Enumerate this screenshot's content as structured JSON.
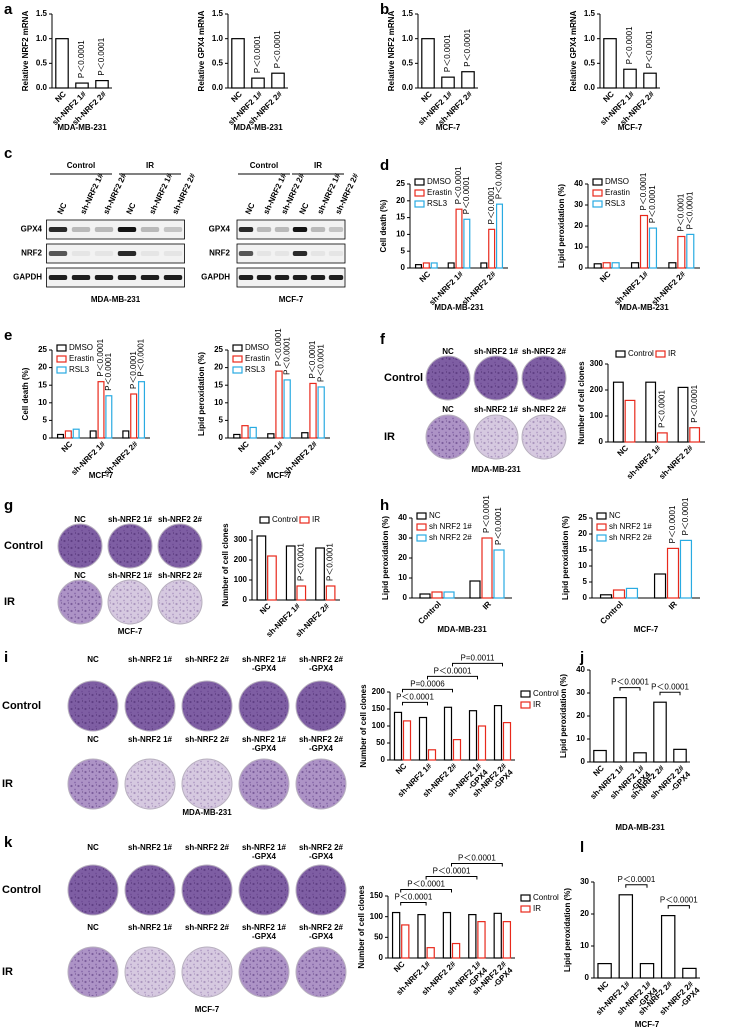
{
  "panel_letters": [
    "a",
    "b",
    "c",
    "d",
    "e",
    "f",
    "g",
    "h",
    "i",
    "j",
    "k",
    "l"
  ],
  "chart_data": [
    {
      "type": "bar",
      "ylabel": "Relative NRF2 mRNA",
      "categories": [
        "NC",
        "sh-NRF2 1#",
        "sh-NRF2 2#"
      ],
      "series": [
        {
          "color": "#000000",
          "values": [
            1.0,
            0.1,
            0.15
          ],
          "annotations": [
            null,
            "P＜0.0001",
            "P＜0.0001"
          ]
        }
      ],
      "ylim": [
        0,
        1.5
      ],
      "yticks": [
        {
          "value": 0,
          "label": "0.0"
        },
        {
          "value": 0.5,
          "label": "0.5"
        },
        {
          "value": 1,
          "label": "1.0"
        },
        {
          "value": 1.5,
          "label": "1.5"
        }
      ],
      "caption": "MDA-MB-231"
    },
    {
      "type": "bar",
      "ylabel": "Relative GPX4 mRNA",
      "categories": [
        "NC",
        "sh-NRF2 1#",
        "sh-NRF2 2#"
      ],
      "series": [
        {
          "color": "#000000",
          "values": [
            1.0,
            0.2,
            0.3
          ],
          "annotations": [
            null,
            "P＜0.0001",
            "P＜0.0001"
          ]
        }
      ],
      "ylim": [
        0,
        1.5
      ],
      "yticks": [
        {
          "value": 0,
          "label": "0.0"
        },
        {
          "value": 0.5,
          "label": "0.5"
        },
        {
          "value": 1,
          "label": "1.0"
        },
        {
          "value": 1.5,
          "label": "1.5"
        }
      ],
      "caption": "MDA-MB-231"
    },
    {
      "type": "bar",
      "ylabel": "Relative NRF2 mRNA",
      "categories": [
        "NC",
        "sh-NRF2 1#",
        "sh-NRF2 2#"
      ],
      "series": [
        {
          "color": "#000000",
          "values": [
            1.0,
            0.22,
            0.33
          ],
          "annotations": [
            null,
            "P＜0.0001",
            "P＜0.0001"
          ]
        }
      ],
      "ylim": [
        0,
        1.5
      ],
      "yticks": [
        {
          "value": 0,
          "label": "0.0"
        },
        {
          "value": 0.5,
          "label": "0.5"
        },
        {
          "value": 1,
          "label": "1.0"
        },
        {
          "value": 1.5,
          "label": "1.5"
        }
      ],
      "caption": "MCF-7"
    },
    {
      "type": "bar",
      "ylabel": "Relative GPX4 mRNA",
      "categories": [
        "NC",
        "sh-NRF2 1#",
        "sh-NRF2 2#"
      ],
      "series": [
        {
          "color": "#000000",
          "values": [
            1.0,
            0.38,
            0.3
          ],
          "annotations": [
            null,
            "P＜0.0001",
            "P＜0.0001"
          ]
        }
      ],
      "ylim": [
        0,
        1.5
      ],
      "yticks": [
        {
          "value": 0,
          "label": "0.0"
        },
        {
          "value": 0.5,
          "label": "0.5"
        },
        {
          "value": 1,
          "label": "1.0"
        },
        {
          "value": 1.5,
          "label": "1.5"
        }
      ],
      "caption": "MCF-7"
    },
    {
      "type": "bar",
      "ylabel": "Cell death (%)",
      "categories": [
        "NC",
        "sh-NRF2 1#",
        "sh-NRF2 2#"
      ],
      "series": [
        {
          "name": "DMSO",
          "color": "#000000",
          "values": [
            1,
            1.5,
            1.5
          ]
        },
        {
          "name": "Erastin",
          "color": "#e8291c",
          "values": [
            1.5,
            17.5,
            11.5
          ],
          "annotations": [
            null,
            "P＜0.0001",
            "P＜0.0001"
          ]
        },
        {
          "name": "RSL3",
          "color": "#29abe2",
          "values": [
            1.5,
            14.5,
            19
          ],
          "annotations": [
            null,
            "P＜0.0001",
            "P＜0.0001"
          ]
        }
      ],
      "ylim": [
        0,
        25
      ],
      "yticks": [
        0,
        5,
        10,
        15,
        20,
        25
      ],
      "legend": "upper left",
      "caption": "MDA-MB-231"
    },
    {
      "type": "bar",
      "ylabel": "Lipid peroxidation (%)",
      "categories": [
        "NC",
        "sh-NRF2 1#",
        "sh-NRF2 2#"
      ],
      "series": [
        {
          "name": "DMSO",
          "color": "#000000",
          "values": [
            2,
            2.5,
            2.5
          ]
        },
        {
          "name": "Erastin",
          "color": "#e8291c",
          "values": [
            2.5,
            25,
            15
          ],
          "annotations": [
            null,
            "P＜0.0001",
            "P＜0.0001"
          ]
        },
        {
          "name": "RSL3",
          "color": "#29abe2",
          "values": [
            2.5,
            19,
            16
          ],
          "annotations": [
            null,
            "P＜0.0001",
            "P＜0.0001"
          ]
        }
      ],
      "ylim": [
        0,
        40
      ],
      "yticks": [
        0,
        10,
        20,
        30,
        40
      ],
      "legend": "upper left",
      "caption": "MDA-MB-231"
    },
    {
      "type": "bar",
      "ylabel": "Cell death (%)",
      "categories": [
        "NC",
        "sh-NRF2 1#",
        "sh-NRF2 2#"
      ],
      "series": [
        {
          "name": "DMSO",
          "color": "#000000",
          "values": [
            1,
            2,
            2
          ]
        },
        {
          "name": "Erastin",
          "color": "#e8291c",
          "values": [
            2,
            16,
            12.5
          ],
          "annotations": [
            null,
            "P＜0.0001",
            "P＜0.0001"
          ]
        },
        {
          "name": "RSL3",
          "color": "#29abe2",
          "values": [
            2.5,
            12,
            16
          ],
          "annotations": [
            null,
            "P＜0.0001",
            "P＜0.0001"
          ]
        }
      ],
      "ylim": [
        0,
        25
      ],
      "yticks": [
        0,
        5,
        10,
        15,
        20,
        25
      ],
      "legend": "upper left",
      "caption": "MCF-7"
    },
    {
      "type": "bar",
      "ylabel": "Lipid peroxidation (%)",
      "categories": [
        "NC",
        "sh-NRF2 1#",
        "sh-NRF2 2#"
      ],
      "series": [
        {
          "name": "DMSO",
          "color": "#000000",
          "values": [
            1,
            1.2,
            1.5
          ]
        },
        {
          "name": "Erastin",
          "color": "#e8291c",
          "values": [
            3.5,
            19,
            15.5
          ],
          "annotations": [
            null,
            "P＜0.0001",
            "P＜0.0001"
          ]
        },
        {
          "name": "RSL3",
          "color": "#29abe2",
          "values": [
            3,
            16.5,
            14.5
          ],
          "annotations": [
            null,
            "P＜0.0001",
            "P＜0.0001"
          ]
        }
      ],
      "ylim": [
        0,
        25
      ],
      "yticks": [
        0,
        5,
        10,
        15,
        20,
        25
      ],
      "legend": "upper left",
      "caption": "MCF-7"
    },
    {
      "type": "bar",
      "ylabel": "Number of cell clones",
      "categories": [
        "NC",
        "sh-NRF2 1#",
        "sh-NRF2 2#"
      ],
      "series": [
        {
          "name": "Control",
          "color": "#000000",
          "values": [
            230,
            230,
            210
          ]
        },
        {
          "name": "IR",
          "color": "#e8291c",
          "values": [
            160,
            35,
            55
          ],
          "annotations": [
            null,
            "P＜0.0001",
            "P＜0.0001"
          ]
        }
      ],
      "ylim": [
        0,
        300
      ],
      "yticks": [
        0,
        100,
        200,
        300
      ],
      "legend": "top"
    },
    {
      "type": "bar",
      "ylabel": "Number of cell clones",
      "categories": [
        "NC",
        "sh-NRF2 1#",
        "sh-NRF2 2#"
      ],
      "series": [
        {
          "name": "Control",
          "color": "#000000",
          "values": [
            320,
            270,
            260
          ]
        },
        {
          "name": "IR",
          "color": "#e8291c",
          "values": [
            220,
            70,
            70
          ],
          "annotations": [
            null,
            "P＜0.0001",
            "P＜0.0001"
          ]
        }
      ],
      "ylim": [
        0,
        350
      ],
      "yticks": [
        0,
        100,
        200,
        300
      ],
      "legend": "top"
    },
    {
      "type": "bar",
      "ylabel": "Lipid peroxidation (%)",
      "categories": [
        "Control",
        "IR"
      ],
      "series": [
        {
          "name": "NC",
          "color": "#000000",
          "values": [
            2,
            8.5
          ]
        },
        {
          "name": "sh NRF2 1#",
          "color": "#e8291c",
          "values": [
            3,
            30
          ],
          "annotations": [
            null,
            "P＜0.0001"
          ]
        },
        {
          "name": "sh NRF2 2#",
          "color": "#29abe2",
          "values": [
            3,
            24
          ],
          "annotations": [
            null,
            "P＜0.0001"
          ]
        }
      ],
      "ylim": [
        0,
        40
      ],
      "yticks": [
        0,
        10,
        20,
        30,
        40
      ],
      "legend": "upper left",
      "caption": "MDA-MB-231"
    },
    {
      "type": "bar",
      "ylabel": "Lipid peroxidation (%)",
      "categories": [
        "Control",
        "IR"
      ],
      "series": [
        {
          "name": "NC",
          "color": "#000000",
          "values": [
            1,
            7.5
          ]
        },
        {
          "name": "sh NRF2 1#",
          "color": "#e8291c",
          "values": [
            2.5,
            15.5
          ],
          "annotations": [
            null,
            "P＜0.0001"
          ]
        },
        {
          "name": "sh NRF2 2#",
          "color": "#29abe2",
          "values": [
            3,
            18
          ],
          "annotations": [
            null,
            "P＜0.0001"
          ]
        }
      ],
      "ylim": [
        0,
        25
      ],
      "yticks": [
        0,
        5,
        10,
        15,
        20,
        25
      ],
      "legend": "upper left",
      "caption": "MCF-7"
    },
    {
      "type": "bar",
      "ylabel": "Number of cell clones",
      "categories": [
        "NC",
        "sh-NRF2 1#",
        "sh-NRF2 2#",
        [
          "sh-NRF2 1#",
          "-GPX4"
        ],
        [
          "sh-NRF2 2#",
          "-GPX4"
        ]
      ],
      "series": [
        {
          "name": "Control",
          "color": "#000000",
          "values": [
            140,
            125,
            155,
            145,
            160
          ]
        },
        {
          "name": "IR",
          "color": "#e8291c",
          "values": [
            115,
            30,
            60,
            100,
            110
          ]
        }
      ],
      "ylim": [
        0,
        200
      ],
      "yticks": [
        0,
        50,
        100,
        150,
        200
      ],
      "legend": "right",
      "brackets": [
        {
          "between": [
            0,
            1
          ],
          "label": "P＜0.0001"
        },
        {
          "between": [
            0,
            2
          ],
          "label": "P=0.0006"
        },
        {
          "between": [
            1,
            3
          ],
          "label": "P＜0.0001"
        },
        {
          "between": [
            2,
            4
          ],
          "label": "P=0.0011"
        }
      ]
    },
    {
      "type": "bar",
      "ylabel": "Lipid peroxidation (%)",
      "categories": [
        "NC",
        "sh-NRF2 1#",
        [
          "sh-NRF2 1#",
          "-GPX4"
        ],
        "sh-NRF2 2#",
        [
          "sh-NRF2 2#",
          "-GPX4"
        ]
      ],
      "series": [
        {
          "color": "#000000",
          "values": [
            5,
            28,
            4,
            26,
            5.5
          ]
        }
      ],
      "ylim": [
        0,
        40
      ],
      "yticks": [
        0,
        10,
        20,
        30,
        40
      ],
      "brackets": [
        {
          "between": [
            1,
            2
          ],
          "label": "P＜0.0001"
        },
        {
          "between": [
            3,
            4
          ],
          "label": "P＜0.0001"
        }
      ],
      "caption": "MDA-MB-231"
    },
    {
      "type": "bar",
      "ylabel": "Number of cell clones",
      "categories": [
        "NC",
        "sh-NRF2 1#",
        "sh-NRF2 2#",
        [
          "sh-NRF2 1#",
          "-GPX4"
        ],
        [
          "sh-NRF2 2#",
          "-GPX4"
        ]
      ],
      "series": [
        {
          "name": "Control",
          "color": "#000000",
          "values": [
            110,
            105,
            110,
            105,
            108
          ]
        },
        {
          "name": "IR",
          "color": "#e8291c",
          "values": [
            80,
            25,
            35,
            88,
            88
          ]
        }
      ],
      "ylim": [
        0,
        150
      ],
      "yticks": [
        0,
        50,
        100,
        150
      ],
      "legend": "right",
      "brackets": [
        {
          "between": [
            0,
            1
          ],
          "label": "P＜0.0001"
        },
        {
          "between": [
            0,
            2
          ],
          "label": "P＜0.0001"
        },
        {
          "between": [
            1,
            3
          ],
          "label": "P＜0.0001"
        },
        {
          "between": [
            2,
            4
          ],
          "label": "P＜0.0001"
        }
      ]
    },
    {
      "type": "bar",
      "ylabel": "Lipid peroxidation (%)",
      "categories": [
        "NC",
        "sh-NRF2 1#",
        [
          "sh-NRF2 1#",
          "-GPX4"
        ],
        "sh-NRF2 2#",
        [
          "sh-NRF2 2#",
          "-GPX4"
        ]
      ],
      "series": [
        {
          "color": "#000000",
          "values": [
            4.5,
            26,
            4.5,
            19.5,
            3
          ]
        }
      ],
      "ylim": [
        0,
        30
      ],
      "yticks": [
        0,
        10,
        20,
        30
      ],
      "brackets": [
        {
          "between": [
            1,
            2
          ],
          "label": "P＜0.0001"
        },
        {
          "between": [
            3,
            4
          ],
          "label": "P＜0.0001"
        }
      ],
      "caption": "MCF-7"
    }
  ],
  "blots": [
    {
      "groups": [
        "Control",
        "IR"
      ],
      "lanes": [
        "NC",
        "sh-NRF2 1#",
        "sh-NRF2 2#",
        "NC",
        "sh-NRF2 1#",
        "sh-NRF2 2#"
      ],
      "proteins": [
        "GPX4",
        "NRF2",
        "GAPDH"
      ],
      "cell_line": "MDA-MB-231"
    },
    {
      "groups": [
        "Control",
        "IR"
      ],
      "lanes": [
        "NC",
        "sh-NRF2 1#",
        "sh-NRF2 2#",
        "NC",
        "sh-NRF2 1#",
        "sh-NRF2 2#"
      ],
      "proteins": [
        "GPX4",
        "NRF2",
        "GAPDH"
      ],
      "cell_line": "MCF-7"
    }
  ],
  "colonies": [
    {
      "rows": [
        "Control",
        "IR"
      ],
      "columns": [
        "NC",
        "sh-NRF2 1#",
        "sh-NRF2 2#"
      ],
      "cell_line": "MDA-MB-231"
    },
    {
      "rows": [
        "Control",
        "IR"
      ],
      "columns": [
        "NC",
        "sh-NRF2 1#",
        "sh-NRF2 2#"
      ],
      "cell_line": "MCF-7"
    },
    {
      "rows": [
        "Control",
        "IR"
      ],
      "columns": [
        "NC",
        "sh-NRF2 1#",
        "sh-NRF2 2#",
        [
          "sh-NRF2 1#",
          "-GPX4"
        ],
        [
          "sh-NRF2 2#",
          "-GPX4"
        ]
      ],
      "cell_line": "MDA-MB-231"
    },
    {
      "rows": [
        "Control",
        "IR"
      ],
      "columns": [
        "NC",
        "sh-NRF2 1#",
        "sh-NRF2 2#",
        [
          "sh-NRF2 1#",
          "-GPX4"
        ],
        [
          "sh-NRF2 2#",
          "-GPX4"
        ]
      ],
      "cell_line": "MCF-7"
    }
  ]
}
